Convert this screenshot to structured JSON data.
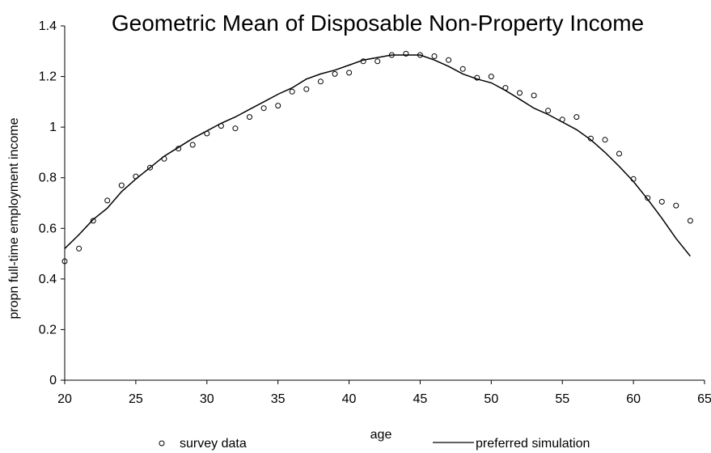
{
  "chart_data": {
    "type": "scatter",
    "title": "Geometric Mean of Disposable Non-Property Income",
    "xlabel": "age",
    "ylabel": "propn full-time employment income",
    "xlim": [
      20,
      65
    ],
    "ylim": [
      0,
      1.4
    ],
    "xticks": [
      20,
      25,
      30,
      35,
      40,
      45,
      50,
      55,
      60,
      65
    ],
    "yticks": [
      0,
      0.2,
      0.4,
      0.6,
      0.8,
      1,
      1.2,
      1.4
    ],
    "grid": false,
    "legend_position": "bottom",
    "series": [
      {
        "name": "survey data",
        "style": "markers",
        "marker": "open-circle",
        "color": "#000000",
        "x": [
          20,
          21,
          22,
          23,
          24,
          25,
          26,
          27,
          28,
          29,
          30,
          31,
          32,
          33,
          34,
          35,
          36,
          37,
          38,
          39,
          40,
          41,
          42,
          43,
          44,
          45,
          46,
          47,
          48,
          49,
          50,
          51,
          52,
          53,
          54,
          55,
          56,
          57,
          58,
          59,
          60,
          61,
          62,
          63,
          64
        ],
        "y": [
          0.47,
          0.52,
          0.63,
          0.71,
          0.77,
          0.805,
          0.84,
          0.875,
          0.915,
          0.93,
          0.975,
          1.005,
          0.995,
          1.04,
          1.075,
          1.085,
          1.14,
          1.15,
          1.18,
          1.21,
          1.215,
          1.26,
          1.26,
          1.285,
          1.29,
          1.285,
          1.28,
          1.265,
          1.23,
          1.195,
          1.2,
          1.155,
          1.135,
          1.125,
          1.065,
          1.03,
          1.04,
          0.955,
          0.95,
          0.895,
          0.795,
          0.72,
          0.705,
          0.69,
          0.63
        ]
      },
      {
        "name": "preferred simulation",
        "style": "line",
        "color": "#000000",
        "x": [
          20,
          21,
          22,
          23,
          24,
          25,
          26,
          27,
          28,
          29,
          30,
          31,
          32,
          33,
          34,
          35,
          36,
          37,
          38,
          39,
          40,
          41,
          42,
          43,
          44,
          45,
          46,
          47,
          48,
          49,
          50,
          51,
          52,
          53,
          54,
          55,
          56,
          57,
          58,
          59,
          60,
          61,
          62,
          63,
          64
        ],
        "y": [
          0.52,
          0.575,
          0.635,
          0.68,
          0.745,
          0.795,
          0.84,
          0.885,
          0.92,
          0.955,
          0.985,
          1.015,
          1.04,
          1.07,
          1.1,
          1.13,
          1.155,
          1.19,
          1.21,
          1.225,
          1.245,
          1.265,
          1.275,
          1.285,
          1.285,
          1.285,
          1.265,
          1.24,
          1.21,
          1.19,
          1.175,
          1.145,
          1.11,
          1.075,
          1.05,
          1.02,
          0.99,
          0.95,
          0.9,
          0.845,
          0.785,
          0.715,
          0.64,
          0.56,
          0.49
        ]
      }
    ]
  }
}
